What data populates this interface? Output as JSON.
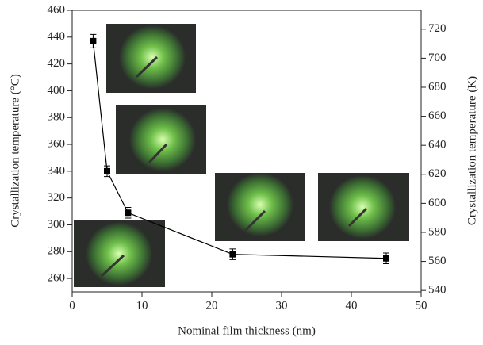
{
  "chart_data": {
    "type": "line",
    "x_label": "Nominal film thickness (nm)",
    "y_label": "Crystallization temperature (°C)",
    "y2_label": "Crystallization temperature (K)",
    "xlim": [
      0,
      50
    ],
    "xticks": [
      0,
      10,
      20,
      30,
      40,
      50
    ],
    "ylim": [
      250,
      460
    ],
    "yticks": [
      260,
      280,
      300,
      320,
      340,
      360,
      380,
      400,
      420,
      440,
      460
    ],
    "y2lim": [
      539,
      733
    ],
    "y2ticks": [
      540,
      560,
      580,
      600,
      620,
      640,
      660,
      680,
      700,
      720
    ],
    "series": [
      {
        "color": "#000000",
        "x": [
          3,
          5,
          8,
          23,
          45
        ],
        "values": [
          437,
          340,
          309,
          278,
          275
        ],
        "errors": [
          5,
          4,
          4,
          4,
          4
        ]
      }
    ]
  }
}
